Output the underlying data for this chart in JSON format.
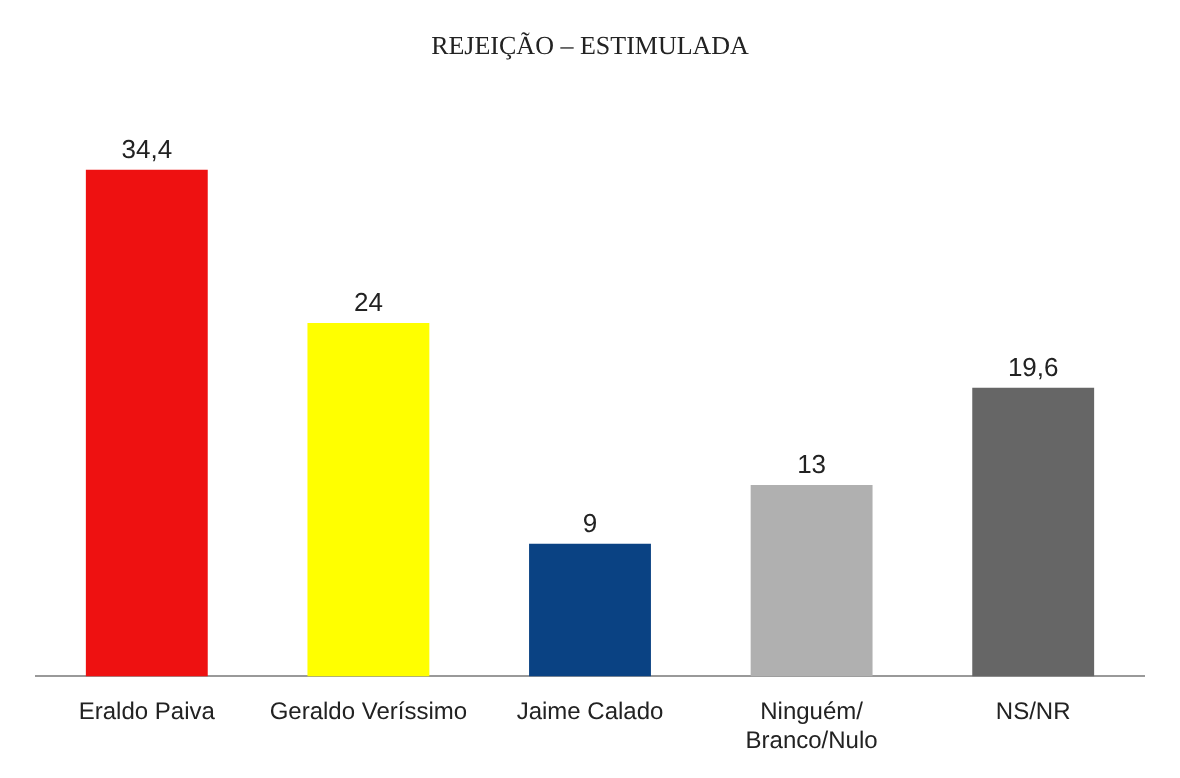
{
  "chart_data": {
    "type": "bar",
    "title": "REJEIÇÃO – ESTIMULADA",
    "categories": [
      "Eraldo Paiva",
      "Geraldo Veríssimo",
      "Jaime Calado",
      "Ninguém/Branco/Nulo",
      "NS/NR"
    ],
    "values": [
      34.4,
      24,
      9,
      13,
      19.6
    ],
    "colors": [
      "#ee1111",
      "#ffff00",
      "#0a4283",
      "#b0b0b0",
      "#666666"
    ],
    "value_labels": [
      "34,4",
      "24",
      "9",
      "13",
      "19,6"
    ],
    "tick_labels": "x",
    "grid": false,
    "legend": false
  }
}
